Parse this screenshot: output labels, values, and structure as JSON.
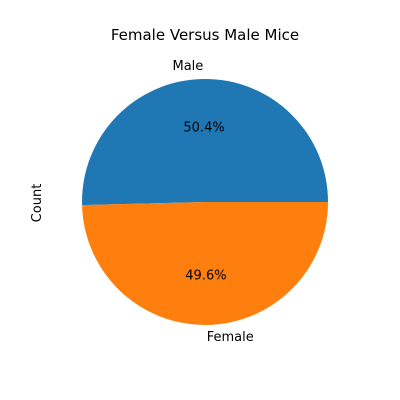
{
  "chart_data": {
    "type": "pie",
    "title": "Female Versus Male Mice",
    "ylabel": "Count",
    "slices": [
      {
        "label": "Male",
        "value": 50.4,
        "pct_label": "50.4%",
        "color": "#1f77b4"
      },
      {
        "label": "Female",
        "value": 49.6,
        "pct_label": "49.6%",
        "color": "#ff7f0e"
      }
    ]
  }
}
